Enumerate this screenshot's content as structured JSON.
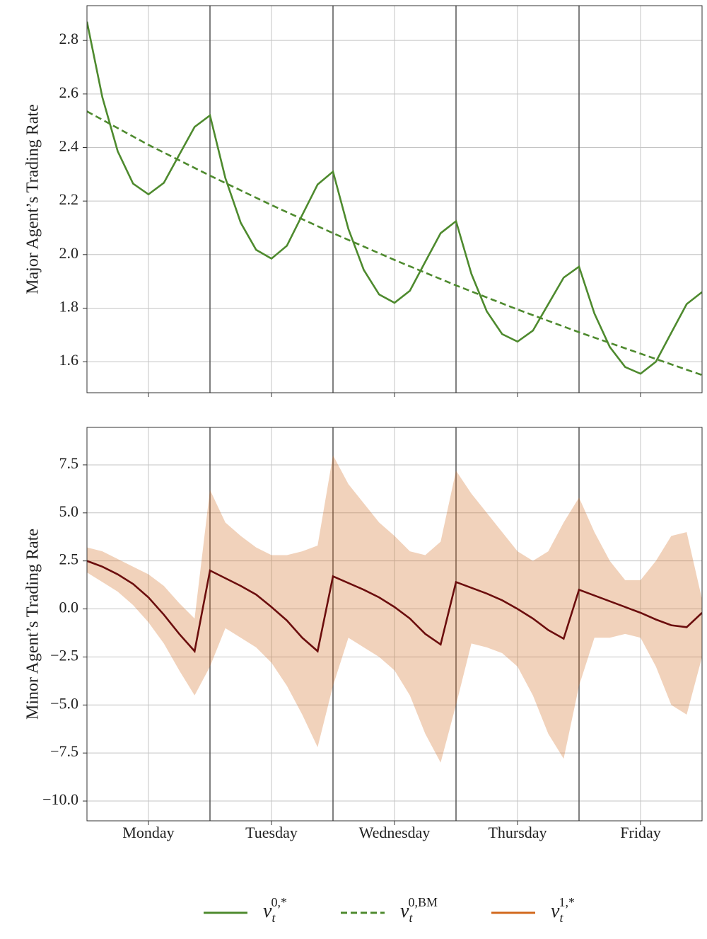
{
  "chart_data": [
    {
      "type": "line",
      "y_label": "Major Agent’s Trading Rate",
      "xlim": [
        0,
        5
      ],
      "ylim": [
        1.484,
        2.93
      ],
      "yticks": [
        1.6,
        1.8,
        {
          "value": 2,
          "label": "2.0"
        },
        2.2,
        2.4,
        2.6,
        2.8
      ],
      "vlines": [
        1,
        2,
        3,
        4
      ],
      "grid": true,
      "series": [
        {
          "name": {
            "base": "ν",
            "sub": "t",
            "sup": "0,*"
          },
          "color": "#4e8a2e",
          "linestyle": "solid",
          "x": [
            0,
            0.125,
            0.25,
            0.375,
            0.5,
            0.625,
            0.75,
            0.875,
            1,
            1.125,
            1.25,
            1.375,
            1.5,
            1.625,
            1.75,
            1.875,
            2,
            2.125,
            2.25,
            2.375,
            2.5,
            2.625,
            2.75,
            2.875,
            3,
            3.125,
            3.25,
            3.375,
            3.5,
            3.625,
            3.75,
            3.875,
            4,
            4.125,
            4.25,
            4.375,
            4.5,
            4.625,
            4.75,
            4.875,
            5
          ],
          "values": [
            2.87,
            2.588,
            2.386,
            2.265,
            2.225,
            2.268,
            2.373,
            2.477,
            2.52,
            2.286,
            2.119,
            2.018,
            1.985,
            2.033,
            2.148,
            2.262,
            2.31,
            2.096,
            1.943,
            1.851,
            1.82,
            1.865,
            1.973,
            2.08,
            2.125,
            1.928,
            1.788,
            1.703,
            1.675,
            1.716,
            1.815,
            1.914,
            1.955,
            1.78,
            1.655,
            1.58,
            1.555,
            1.6,
            1.708,
            1.815,
            1.86
          ]
        },
        {
          "name": {
            "base": "ν",
            "sub": "t",
            "sup": "0,BM"
          },
          "color": "#4e8a2e",
          "linestyle": "dashed",
          "x": [
            0,
            0.5,
            1,
            1.5,
            2,
            2.5,
            3,
            3.5,
            4,
            4.5,
            5
          ],
          "values": [
            2.535,
            2.41,
            2.295,
            2.185,
            2.08,
            1.98,
            1.885,
            1.795,
            1.71,
            1.63,
            1.55
          ]
        }
      ]
    },
    {
      "type": "line",
      "y_label": "Minor Agent’s Trading Rate",
      "xlim": [
        0,
        5
      ],
      "ylim": [
        -11.03,
        9.45
      ],
      "xticks": [
        {
          "value": 0.5,
          "label": "Monday"
        },
        {
          "value": 1.5,
          "label": "Tuesday"
        },
        {
          "value": 2.5,
          "label": "Wednesday"
        },
        {
          "value": 3.5,
          "label": "Thursday"
        },
        {
          "value": 4.5,
          "label": "Friday"
        }
      ],
      "yticks": [
        {
          "value": -10,
          "label": "−10.0"
        },
        {
          "value": -7.5,
          "label": "−7.5"
        },
        {
          "value": -5,
          "label": "−5.0"
        },
        {
          "value": -2.5,
          "label": "−2.5"
        },
        {
          "value": 0,
          "label": "0.0"
        },
        2.5,
        {
          "value": 5,
          "label": "5.0"
        },
        7.5
      ],
      "vlines": [
        1,
        2,
        3,
        4
      ],
      "grid": true,
      "series": [
        {
          "name": {
            "base": "ν",
            "sub": "t",
            "sup": "1,*"
          },
          "color": "#d2691e",
          "linestyle": "solid",
          "x": [
            0,
            0.125,
            0.25,
            0.375,
            0.5,
            0.625,
            0.75,
            0.875,
            1,
            1.125,
            1.25,
            1.375,
            1.5,
            1.625,
            1.75,
            1.875,
            2,
            2.125,
            2.25,
            2.375,
            2.5,
            2.625,
            2.75,
            2.875,
            3,
            3.125,
            3.25,
            3.375,
            3.5,
            3.625,
            3.75,
            3.875,
            4,
            4.125,
            4.25,
            4.375,
            4.5,
            4.625,
            4.75,
            4.875,
            5
          ],
          "upper": [
            3.2,
            3.0,
            2.6,
            2.2,
            1.8,
            1.2,
            0.3,
            -0.5,
            6.2,
            4.5,
            3.8,
            3.2,
            2.8,
            2.8,
            3.0,
            3.3,
            8.0,
            6.5,
            5.5,
            4.5,
            3.8,
            3.0,
            2.8,
            3.5,
            7.2,
            6.0,
            5.0,
            4.0,
            3.0,
            2.5,
            3.0,
            4.5,
            5.8,
            4.0,
            2.5,
            1.5,
            1.5,
            2.5,
            3.8,
            4.0,
            0.5
          ],
          "lower": [
            1.9,
            1.4,
            0.9,
            0.2,
            -0.7,
            -1.8,
            -3.2,
            -4.5,
            -3.0,
            -1.0,
            -1.5,
            -2.0,
            -2.8,
            -4.0,
            -5.5,
            -7.2,
            -4.0,
            -1.5,
            -2.0,
            -2.5,
            -3.2,
            -4.5,
            -6.5,
            -8.0,
            -5.0,
            -1.8,
            -2.0,
            -2.3,
            -3.0,
            -4.5,
            -6.5,
            -7.8,
            -4.0,
            -1.5,
            -1.5,
            -1.3,
            -1.5,
            -3.0,
            -5.0,
            -5.5,
            -2.5
          ]
        },
        {
          "color": "#6b0d0d",
          "linestyle": "solid",
          "x": [
            0,
            0.125,
            0.25,
            0.375,
            0.5,
            0.625,
            0.75,
            0.875,
            1,
            1.125,
            1.25,
            1.375,
            1.5,
            1.625,
            1.75,
            1.875,
            2,
            2.125,
            2.25,
            2.375,
            2.5,
            2.625,
            2.75,
            2.875,
            3,
            3.125,
            3.25,
            3.375,
            3.5,
            3.625,
            3.75,
            3.875,
            4,
            4.125,
            4.25,
            4.375,
            4.5,
            4.625,
            4.75,
            4.875,
            5
          ],
          "values": [
            2.5,
            2.2,
            1.8,
            1.3,
            0.6,
            -0.3,
            -1.3,
            -2.2,
            2.0,
            1.6,
            1.2,
            0.75,
            0.1,
            -0.6,
            -1.5,
            -2.2,
            1.7,
            1.35,
            1.0,
            0.6,
            0.1,
            -0.5,
            -1.3,
            -1.85,
            1.4,
            1.1,
            0.8,
            0.45,
            0.0,
            -0.5,
            -1.1,
            -1.55,
            1.0,
            0.7,
            0.4,
            0.1,
            -0.2,
            -0.55,
            -0.85,
            -0.95,
            -0.2
          ]
        }
      ]
    }
  ]
}
